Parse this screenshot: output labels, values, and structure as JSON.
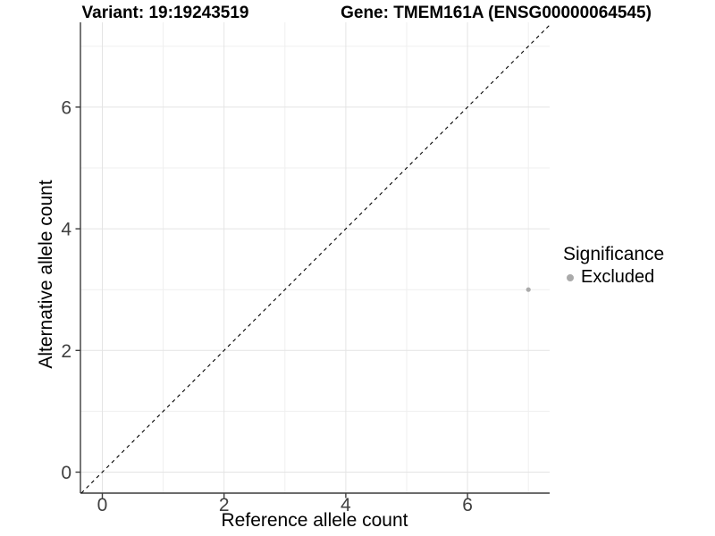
{
  "chart_data": {
    "type": "scatter",
    "titles": {
      "left": "Variant: 19:19243519",
      "right": "Gene: TMEM161A (ENSG00000064545)"
    },
    "xlabel": "Reference allele count",
    "ylabel": "Alternative allele count",
    "xlim": [
      -0.36,
      7.35
    ],
    "ylim": [
      -0.35,
      7.39
    ],
    "x_major_ticks": [
      0,
      2,
      4,
      6
    ],
    "y_major_ticks": [
      0,
      2,
      4,
      6
    ],
    "x_minor_gridlines": [
      1,
      3,
      5,
      7
    ],
    "y_minor_gridlines": [
      1,
      3,
      5,
      7
    ],
    "grid": "major+minor",
    "axis_lines": "left+bottom",
    "reference_line": {
      "equation": "y = x",
      "style": "dashed",
      "color": "#000000"
    },
    "series": [
      {
        "name": "Excluded",
        "color": "#aaaaaa",
        "points": [
          {
            "x": 7,
            "y": 3
          }
        ]
      }
    ],
    "legend": {
      "title": "Significance",
      "position": "right",
      "items": [
        {
          "label": "Excluded",
          "color": "#aaaaaa"
        }
      ]
    }
  },
  "colors": {
    "background": "#ffffff",
    "grid_major": "#e4e4e4",
    "grid_minor": "#efefef",
    "axis_line": "#3c3c3c",
    "tick_label": "#404040",
    "title": "#000000"
  }
}
